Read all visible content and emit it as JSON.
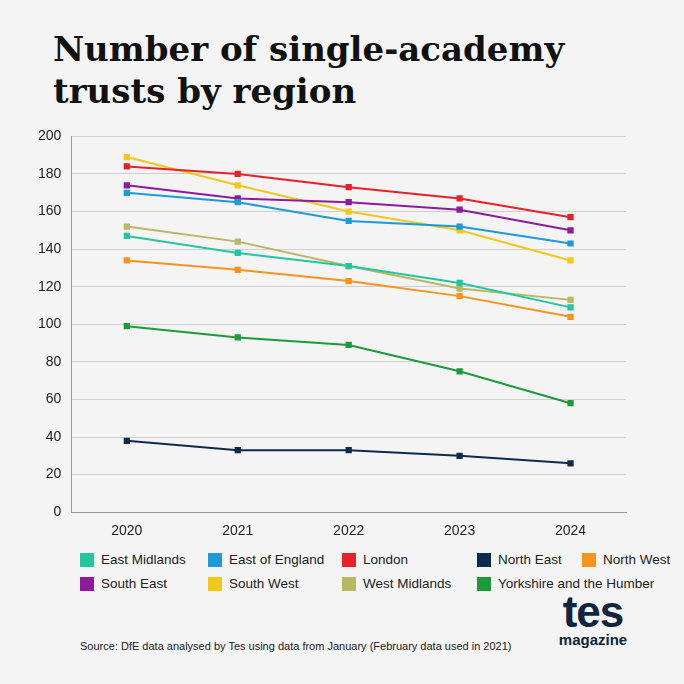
{
  "chart_data": {
    "type": "line",
    "title": "Number of single-academy trusts by region",
    "categories": [
      "2020",
      "2021",
      "2022",
      "2023",
      "2024"
    ],
    "series": [
      {
        "name": "East Midlands",
        "color": "#22c79e",
        "values": [
          147,
          138,
          131,
          122,
          109
        ]
      },
      {
        "name": "East of England",
        "color": "#1b9bd7",
        "values": [
          170,
          165,
          155,
          152,
          143
        ]
      },
      {
        "name": "London",
        "color": "#e8202a",
        "values": [
          184,
          180,
          173,
          167,
          157
        ]
      },
      {
        "name": "North East",
        "color": "#0e2a4c",
        "values": [
          38,
          33,
          33,
          30,
          26
        ]
      },
      {
        "name": "North West",
        "color": "#f7941d",
        "values": [
          134,
          129,
          123,
          115,
          104
        ]
      },
      {
        "name": "South East",
        "color": "#8e1a9c",
        "values": [
          174,
          167,
          165,
          161,
          150
        ]
      },
      {
        "name": "South West",
        "color": "#f2c81b",
        "values": [
          189,
          174,
          160,
          150,
          134
        ]
      },
      {
        "name": "West Midlands",
        "color": "#b9b763",
        "values": [
          152,
          144,
          131,
          119,
          113
        ]
      },
      {
        "name": "Yorkshire and the Humber",
        "color": "#1d9a3c",
        "values": [
          99,
          93,
          89,
          75,
          58
        ]
      }
    ],
    "ylim": [
      0,
      200
    ],
    "yticks": [
      0,
      20,
      40,
      60,
      80,
      100,
      120,
      140,
      160,
      180,
      200
    ],
    "grid": true,
    "marker": "square",
    "legend": "bottom",
    "annotations": [
      "Source: DfE data analysed by Tes using data from January (February data used in 2021)"
    ],
    "logo": [
      "tes",
      "magazine"
    ]
  }
}
